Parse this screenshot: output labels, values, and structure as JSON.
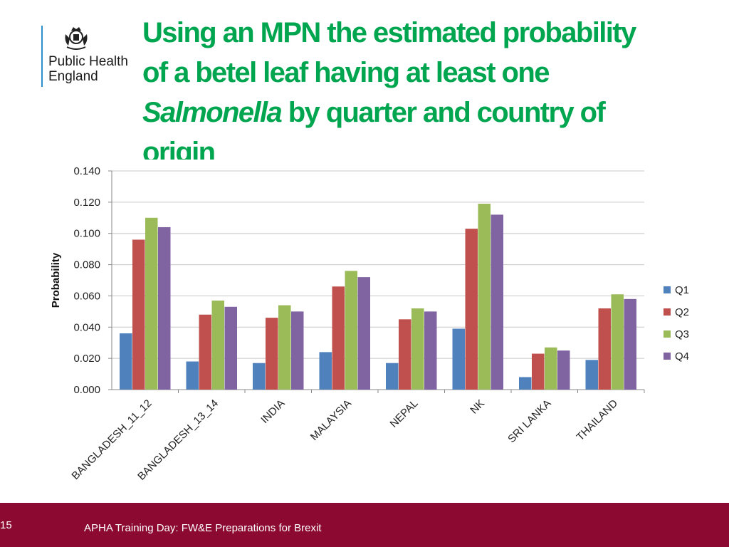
{
  "colors": {
    "brand_green": "#00A54F",
    "footer": "#8C0A31",
    "logo_bar": "#2D8FCB"
  },
  "logo": {
    "org_name": "Public Health\nEngland",
    "icon": "royal-crest-icon"
  },
  "title": {
    "line1": "Using an MPN the estimated probability",
    "line2": "of a betel leaf having at least one",
    "line3_italic": "Salmonella",
    "line3_rest": " by quarter and country of",
    "line4": "origin"
  },
  "chart_data": {
    "type": "bar",
    "categories": [
      "BANGLADESH_11_12",
      "BANGLADESH_13_14",
      "INDIA",
      "MALAYSIA",
      "NEPAL",
      "NK",
      "SRI LANKA",
      "THAILAND"
    ],
    "series": [
      {
        "name": "Q1",
        "color": "#4F81BD",
        "values": [
          0.036,
          0.018,
          0.017,
          0.024,
          0.017,
          0.039,
          0.008,
          0.019
        ]
      },
      {
        "name": "Q2",
        "color": "#C0504D",
        "values": [
          0.096,
          0.048,
          0.046,
          0.066,
          0.045,
          0.103,
          0.023,
          0.052
        ]
      },
      {
        "name": "Q3",
        "color": "#9BBB59",
        "values": [
          0.11,
          0.057,
          0.054,
          0.076,
          0.052,
          0.119,
          0.027,
          0.061
        ]
      },
      {
        "name": "Q4",
        "color": "#8064A2",
        "values": [
          0.104,
          0.053,
          0.05,
          0.072,
          0.05,
          0.112,
          0.025,
          0.058
        ]
      }
    ],
    "ylabel": "Probability",
    "xlabel": "",
    "ylim": [
      0,
      0.14
    ],
    "yticks": [
      "0.000",
      "0.020",
      "0.040",
      "0.060",
      "0.080",
      "0.100",
      "0.120",
      "0.140"
    ],
    "grid": true,
    "legend": "right"
  },
  "footer": {
    "page_number": "15",
    "text": "APHA Training Day: FW&E Preparations for Brexit"
  }
}
